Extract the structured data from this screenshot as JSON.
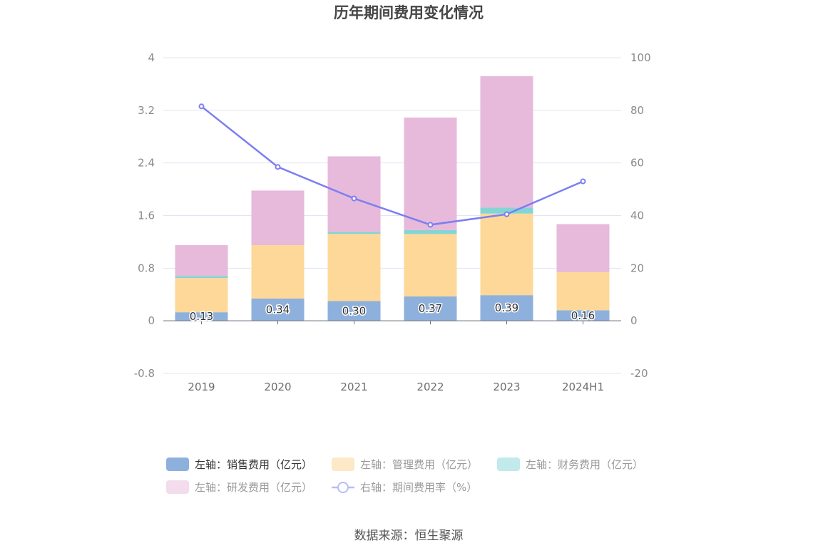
{
  "chart_data": {
    "type": "bar",
    "title": "历年期间费用变化情况",
    "categories": [
      "2019",
      "2020",
      "2021",
      "2022",
      "2023",
      "2024H1"
    ],
    "stacked": true,
    "y_left": {
      "ticks": [
        "4",
        "3.2",
        "2.4",
        "1.6",
        "0.8",
        "0",
        "-0.8"
      ],
      "ylim": [
        -0.8,
        4
      ]
    },
    "y_right": {
      "ticks": [
        "100",
        "80",
        "60",
        "40",
        "20",
        "0",
        "-20"
      ],
      "ylim": [
        -20,
        100
      ]
    },
    "series": [
      {
        "name": "左轴：销售费用（亿元）",
        "axis": "left",
        "type": "bar",
        "color": "#8eb0dc",
        "values": [
          0.13,
          0.34,
          0.3,
          0.37,
          0.39,
          0.16
        ],
        "labels": [
          "0.13",
          "0.34",
          "0.30",
          "0.37",
          "0.39",
          "0.16"
        ]
      },
      {
        "name": "左轴：管理费用（亿元）",
        "axis": "left",
        "type": "bar",
        "color": "#fed898",
        "values": [
          0.52,
          0.81,
          1.02,
          0.95,
          1.24,
          0.58
        ]
      },
      {
        "name": "左轴：财务费用（亿元）",
        "axis": "left",
        "type": "bar",
        "color": "#85d4d4",
        "values": [
          0.03,
          0.0,
          0.03,
          0.06,
          0.09,
          0.0
        ]
      },
      {
        "name": "左轴：研发费用（亿元）",
        "axis": "left",
        "type": "bar",
        "color": "#e7b9db",
        "values": [
          0.47,
          0.83,
          1.15,
          1.71,
          2.0,
          0.73
        ]
      },
      {
        "name": "右轴：期间费用率（%）",
        "axis": "right",
        "type": "line",
        "color": "#7b7ff0",
        "values": [
          81.5,
          58.5,
          46.5,
          36.5,
          40.5,
          53
        ]
      }
    ],
    "legend_position": "bottom",
    "grid": true
  },
  "legend": {
    "items": [
      {
        "label": "左轴：销售费用（亿元）",
        "color": "#8eb0dc",
        "active": true,
        "shape": "bar"
      },
      {
        "label": "左轴：管理费用（亿元）",
        "color": "#fde8c7",
        "active": false,
        "shape": "bar"
      },
      {
        "label": "左轴：财务费用（亿元）",
        "color": "#c2e9ec",
        "active": false,
        "shape": "bar"
      },
      {
        "label": "左轴：研发费用（亿元）",
        "color": "#f3dcec",
        "active": false,
        "shape": "bar"
      },
      {
        "label": "右轴：期间费用率（%）",
        "color": "#b9bcf6",
        "active": false,
        "shape": "line"
      }
    ]
  },
  "source": "数据来源：恒生聚源"
}
